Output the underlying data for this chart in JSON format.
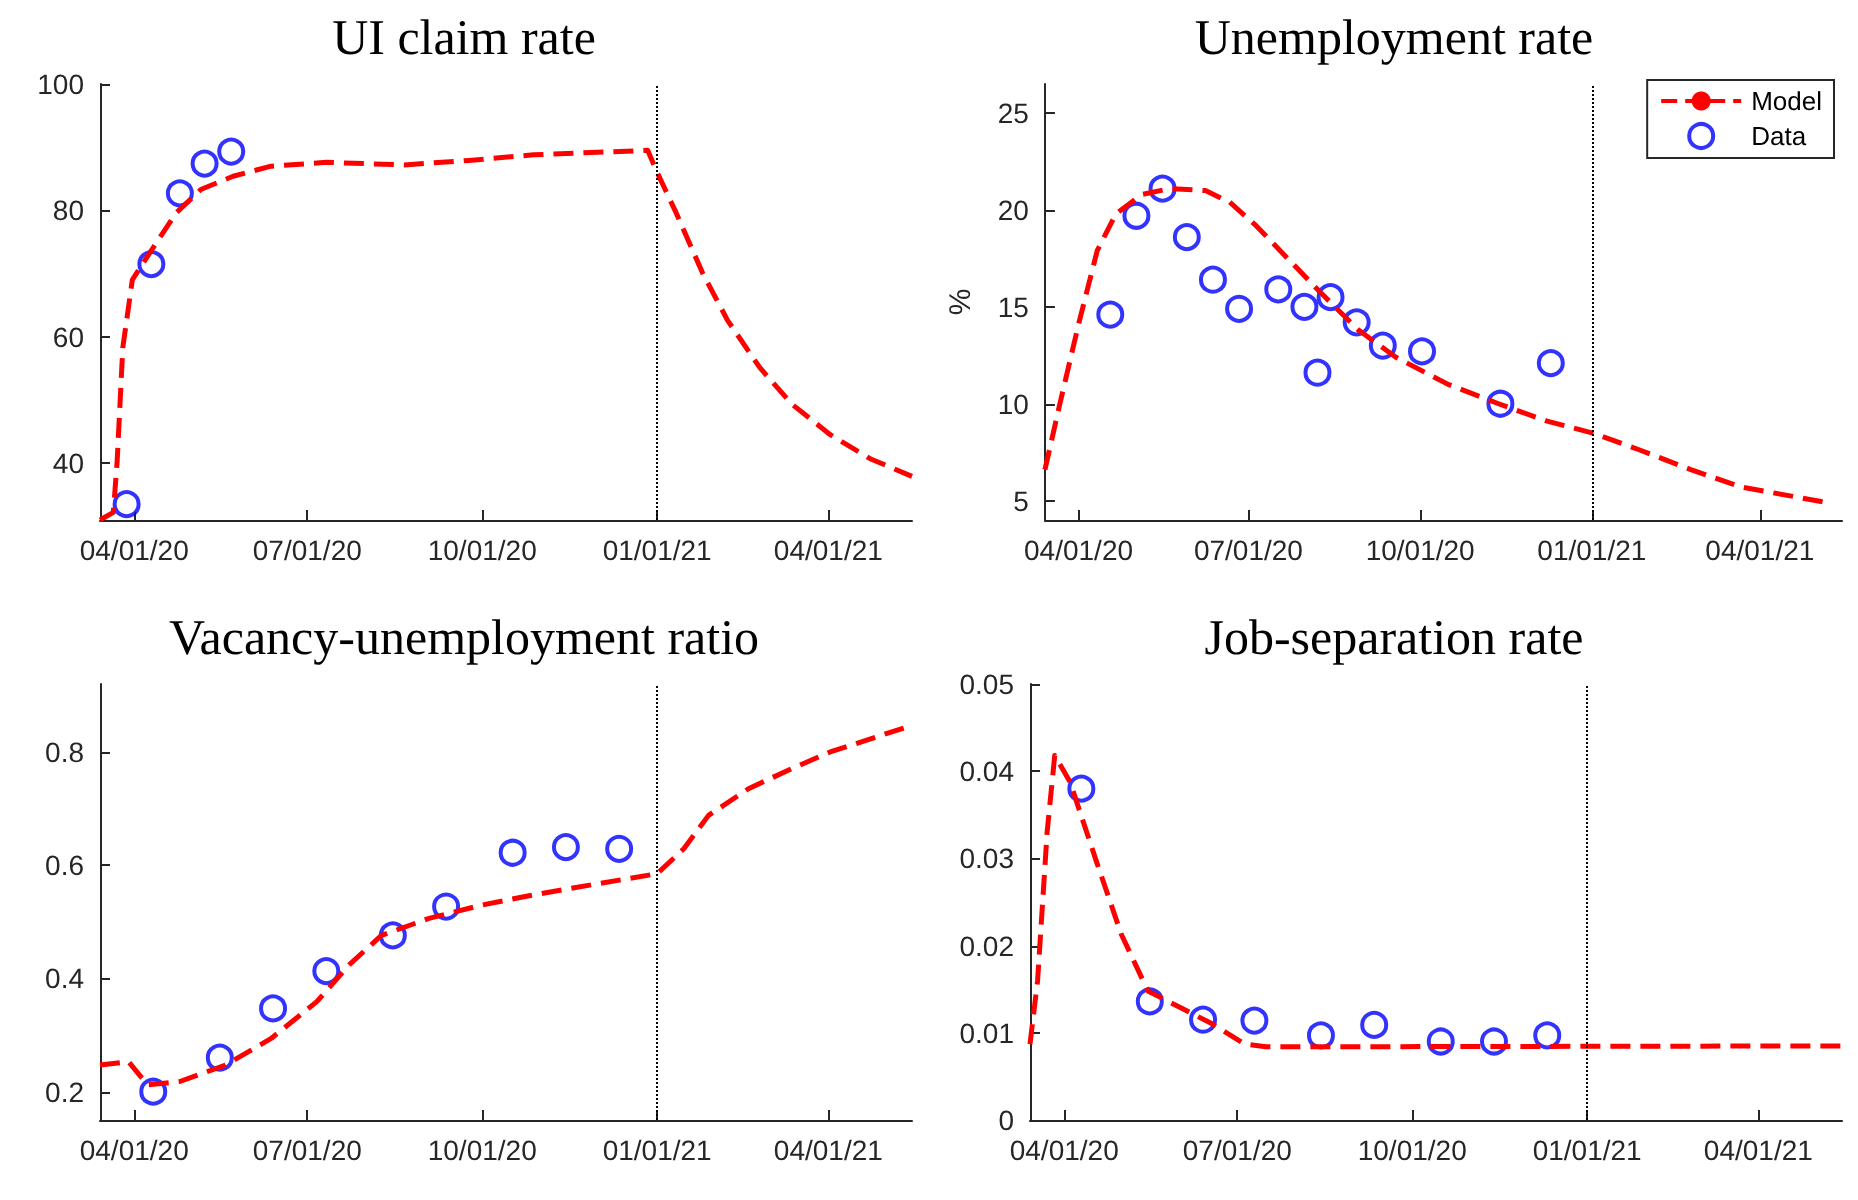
{
  "chart_data": [
    {
      "type": "line",
      "title": "UI claim rate",
      "xlim": [
        "2020-03-14",
        "2021-05-15"
      ],
      "xticks": [
        {
          "value": "2020-04-01",
          "label": "04/01/20"
        },
        {
          "value": "2020-07-01",
          "label": "07/01/20"
        },
        {
          "value": "2020-10-01",
          "label": "10/01/20"
        },
        {
          "value": "2021-01-01",
          "label": "01/01/21"
        },
        {
          "value": "2021-04-01",
          "label": "04/01/21"
        }
      ],
      "ylim": [
        31,
        100
      ],
      "yticks": [
        40,
        60,
        80,
        100
      ],
      "grid": false,
      "legend": false,
      "ref_lines": [
        {
          "axis": "x",
          "value": "2021-01-01",
          "color": "#000000",
          "line_style": "dotted"
        }
      ],
      "series": [
        {
          "type": "line",
          "color": "#ff0000",
          "line_style": "dashed",
          "marker": "none",
          "x": [
            "2020-03-14",
            "2020-03-21",
            "2020-03-23",
            "2020-03-26",
            "2020-03-31",
            "2020-04-09",
            "2020-04-23",
            "2020-05-06",
            "2020-05-23",
            "2020-06-12",
            "2020-07-11",
            "2020-08-21",
            "2020-09-24",
            "2020-10-28",
            "2020-12-27",
            "2021-01-01",
            "2021-01-11",
            "2021-01-25",
            "2021-02-07",
            "2021-02-24",
            "2021-03-13",
            "2021-04-02",
            "2021-04-23",
            "2021-05-15"
          ],
          "values": [
            31,
            32.2,
            40.2,
            58.3,
            69,
            73.2,
            79.6,
            83.3,
            85.4,
            87,
            87.6,
            87.2,
            87.9,
            88.8,
            89.5,
            86,
            79.6,
            70,
            62.6,
            55.1,
            49.3,
            44.5,
            40.7,
            37.9
          ]
        },
        {
          "type": "scatter",
          "color": "#0000ff",
          "marker": "circle",
          "x": [
            "2020-03-28",
            "2020-04-10",
            "2020-04-25",
            "2020-05-08",
            "2020-05-22"
          ],
          "values": [
            33.5,
            71.5,
            82.7,
            87.4,
            89.3
          ]
        }
      ]
    },
    {
      "type": "line",
      "title": "Unemployment rate",
      "ylabel": "%",
      "xlim": [
        "2020-03-14",
        "2021-05-15"
      ],
      "xticks": [
        {
          "value": "2020-04-01",
          "label": "04/01/20"
        },
        {
          "value": "2020-07-01",
          "label": "07/01/20"
        },
        {
          "value": "2020-10-01",
          "label": "10/01/20"
        },
        {
          "value": "2021-01-01",
          "label": "01/01/21"
        },
        {
          "value": "2021-04-01",
          "label": "04/01/21"
        }
      ],
      "ylim": [
        4,
        26.5
      ],
      "yticks": [
        5,
        10,
        15,
        20,
        25
      ],
      "grid": false,
      "legend": "top right",
      "ref_lines": [
        {
          "axis": "x",
          "value": "2021-01-01",
          "color": "#000000",
          "line_style": "dotted"
        }
      ],
      "series": [
        {
          "name": "Model",
          "type": "line",
          "color": "#ff0000",
          "line_style": "dashed",
          "marker": "none",
          "x": [
            "2020-03-14",
            "2020-03-22",
            "2020-04-01",
            "2020-04-11",
            "2020-04-21",
            "2020-05-05",
            "2020-05-20",
            "2020-06-08",
            "2020-06-21",
            "2020-07-05",
            "2020-07-22",
            "2020-08-08",
            "2020-08-29",
            "2020-09-18",
            "2020-10-16",
            "2020-11-12",
            "2020-12-08",
            "2021-01-01",
            "2021-01-27",
            "2021-02-23",
            "2021-03-22",
            "2021-05-07"
          ],
          "values": [
            6.6,
            10,
            14.1,
            17.9,
            19.8,
            20.8,
            21.1,
            21,
            20.4,
            19.2,
            17.5,
            15.8,
            13.8,
            12.4,
            11,
            10,
            9.1,
            8.5,
            7.6,
            6.6,
            5.7,
            4.9
          ]
        },
        {
          "name": "Data",
          "type": "scatter",
          "color": "#0000ff",
          "marker": "circle",
          "x": [
            "2020-04-18",
            "2020-05-02",
            "2020-05-16",
            "2020-05-29",
            "2020-06-12",
            "2020-06-26",
            "2020-07-17",
            "2020-07-31",
            "2020-08-07",
            "2020-08-14",
            "2020-08-28",
            "2020-09-11",
            "2020-10-02",
            "2020-11-13",
            "2020-12-10"
          ],
          "values": [
            14.6,
            19.7,
            21.1,
            18.6,
            16.4,
            14.9,
            15.9,
            15,
            11.6,
            15.5,
            14.2,
            13,
            12.7,
            10,
            12.1
          ]
        }
      ]
    },
    {
      "type": "line",
      "title": "Vacancy-unemployment ratio",
      "xlim": [
        "2020-03-14",
        "2021-05-15"
      ],
      "xticks": [
        {
          "value": "2020-04-01",
          "label": "04/01/20"
        },
        {
          "value": "2020-07-01",
          "label": "07/01/20"
        },
        {
          "value": "2020-10-01",
          "label": "10/01/20"
        },
        {
          "value": "2021-01-01",
          "label": "01/01/21"
        },
        {
          "value": "2021-04-01",
          "label": "04/01/21"
        }
      ],
      "ylim": [
        0.15,
        0.92
      ],
      "yticks": [
        0.2,
        0.4,
        0.6,
        0.8
      ],
      "grid": false,
      "legend": false,
      "ref_lines": [
        {
          "axis": "x",
          "value": "2021-01-01",
          "color": "#000000",
          "line_style": "dotted"
        }
      ],
      "series": [
        {
          "type": "line",
          "color": "#ff0000",
          "line_style": "dashed",
          "marker": "none",
          "x": [
            "2020-03-14",
            "2020-03-29",
            "2020-04-08",
            "2020-04-25",
            "2020-05-19",
            "2020-06-12",
            "2020-07-06",
            "2020-07-23",
            "2020-08-09",
            "2020-09-03",
            "2020-09-30",
            "2020-10-27",
            "2020-12-02",
            "2021-01-01",
            "2021-01-15",
            "2021-01-28",
            "2021-02-18",
            "2021-03-13",
            "2021-04-02",
            "2021-05-15"
          ],
          "values": [
            0.247,
            0.253,
            0.212,
            0.218,
            0.247,
            0.294,
            0.359,
            0.424,
            0.476,
            0.506,
            0.529,
            0.547,
            0.568,
            0.585,
            0.629,
            0.688,
            0.735,
            0.771,
            0.8,
            0.847
          ]
        },
        {
          "type": "scatter",
          "color": "#0000ff",
          "marker": "circle",
          "x": [
            "2020-04-11",
            "2020-05-16",
            "2020-06-13",
            "2020-07-11",
            "2020-08-15",
            "2020-09-12",
            "2020-10-17",
            "2020-11-14",
            "2020-12-12"
          ],
          "values": [
            0.2,
            0.26,
            0.347,
            0.413,
            0.476,
            0.527,
            0.622,
            0.632,
            0.629
          ]
        }
      ]
    },
    {
      "type": "line",
      "title": "Job-separation rate",
      "xlim": [
        "2020-03-14",
        "2021-05-15"
      ],
      "xticks": [
        {
          "value": "2020-04-01",
          "label": "04/01/20"
        },
        {
          "value": "2020-07-01",
          "label": "07/01/20"
        },
        {
          "value": "2020-10-01",
          "label": "10/01/20"
        },
        {
          "value": "2021-01-01",
          "label": "01/01/21"
        },
        {
          "value": "2021-04-01",
          "label": "04/01/21"
        }
      ],
      "ylim": [
        0,
        0.05
      ],
      "yticks": [
        0,
        0.01,
        0.02,
        0.03,
        0.04,
        0.05
      ],
      "grid": false,
      "legend": false,
      "ref_lines": [
        {
          "axis": "x",
          "value": "2021-01-01",
          "color": "#000000",
          "line_style": "dotted"
        }
      ],
      "series": [
        {
          "type": "line",
          "color": "#ff0000",
          "line_style": "dashed",
          "marker": "none",
          "x": [
            "2020-03-14",
            "2020-03-18",
            "2020-03-23",
            "2020-03-27",
            "2020-04-04",
            "2020-04-18",
            "2020-05-01",
            "2020-05-15",
            "2020-06-01",
            "2020-06-18",
            "2020-07-05",
            "2020-07-16",
            "2020-08-23",
            "2021-05-15"
          ],
          "values": [
            0.0087,
            0.016,
            0.033,
            0.0418,
            0.0388,
            0.0296,
            0.0213,
            0.0148,
            0.0129,
            0.011,
            0.0087,
            0.0084,
            0.0084,
            0.0085
          ]
        },
        {
          "type": "scatter",
          "color": "#0000ff",
          "marker": "circle",
          "x": [
            "2020-04-10",
            "2020-05-16",
            "2020-06-13",
            "2020-07-10",
            "2020-08-14",
            "2020-09-11",
            "2020-10-16",
            "2020-11-13",
            "2020-12-11"
          ],
          "values": [
            0.038,
            0.0136,
            0.0115,
            0.0114,
            0.0097,
            0.0109,
            0.009,
            0.009,
            0.0097
          ]
        }
      ]
    }
  ]
}
